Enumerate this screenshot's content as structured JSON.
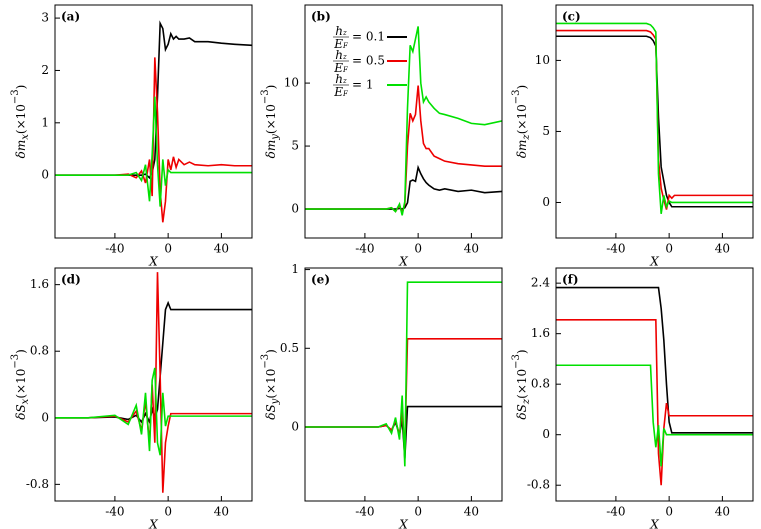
{
  "chart_data": [
    {
      "type": "line",
      "label": "(a)",
      "xlabel": "X",
      "ylabel": {
        "main": "δm",
        "sub": "x",
        "factor": "(×10",
        "exp": "−3",
        "end": ")"
      },
      "x": [
        -85,
        -60,
        -40,
        -30,
        -24,
        -20,
        -17,
        -14,
        -12,
        -10,
        -8,
        -6,
        -4,
        -2,
        0,
        2,
        4,
        6,
        8,
        12,
        16,
        20,
        30,
        40,
        50,
        63
      ],
      "xlim": [
        -85,
        63
      ],
      "xticks": [
        -40,
        0,
        40
      ],
      "ylim": [
        -1.2,
        3.25
      ],
      "yticks": [
        0,
        1,
        2,
        3
      ],
      "series": [
        {
          "name": "= 0.1",
          "color": "#000000",
          "values": [
            0,
            0,
            0,
            0,
            0,
            0,
            0.02,
            -0.05,
            0.05,
            0.3,
            1.5,
            2.9,
            2.8,
            2.4,
            2.5,
            2.7,
            2.6,
            2.65,
            2.6,
            2.6,
            2.62,
            2.55,
            2.55,
            2.52,
            2.5,
            2.48
          ]
        },
        {
          "name": "= 0.5",
          "color": "#ee0000",
          "values": [
            0,
            0,
            0,
            0.02,
            -0.05,
            0.08,
            -0.15,
            0.3,
            -0.4,
            2.25,
            1.2,
            -0.3,
            -0.9,
            -0.5,
            0.3,
            0.1,
            0.35,
            0.15,
            0.3,
            0.2,
            0.25,
            0.2,
            0.18,
            0.2,
            0.18,
            0.18
          ]
        },
        {
          "name": "= 1",
          "color": "#00e000",
          "values": [
            0,
            0,
            0,
            0,
            0.05,
            -0.1,
            0.2,
            -0.5,
            0.4,
            1.5,
            0.2,
            -0.6,
            0.3,
            -0.2,
            0.1,
            0.05,
            0.05,
            0.05,
            0.05,
            0.05,
            0.05,
            0.05,
            0.05,
            0.05,
            0.05,
            0.05
          ]
        }
      ]
    },
    {
      "type": "line",
      "label": "(b)",
      "xlabel": "X",
      "ylabel": {
        "main": "δm",
        "sub": "y",
        "factor": "(×10",
        "exp": "−3",
        "end": ")"
      },
      "legend": true,
      "legend_label": {
        "num": "h",
        "num_sub": "z",
        "den": "E",
        "den_sub": "F"
      },
      "x": [
        -85,
        -60,
        -40,
        -30,
        -24,
        -20,
        -17,
        -14,
        -12,
        -10,
        -8,
        -6,
        -4,
        -2,
        0,
        2,
        4,
        6,
        8,
        12,
        16,
        20,
        30,
        40,
        50,
        63
      ],
      "xlim": [
        -85,
        63
      ],
      "xticks": [
        -40,
        0,
        40
      ],
      "ylim": [
        -2.3,
        16.2
      ],
      "yticks": [
        0,
        5,
        10
      ],
      "series": [
        {
          "name": "= 0.1",
          "color": "#000000",
          "values": [
            0,
            0,
            0,
            0,
            0,
            0,
            0,
            0.05,
            0,
            0.1,
            0.5,
            2.2,
            2.3,
            2.2,
            3.3,
            2.8,
            2.4,
            2.1,
            1.9,
            1.6,
            1.5,
            1.6,
            1.4,
            1.5,
            1.3,
            1.4
          ]
        },
        {
          "name": "= 0.5",
          "color": "#ee0000",
          "values": [
            0,
            0,
            0,
            0,
            0,
            0.1,
            -0.2,
            0.3,
            -0.3,
            0.4,
            5,
            7.6,
            7.0,
            7.5,
            9.8,
            7,
            5.2,
            4.8,
            4.8,
            4.2,
            4.0,
            3.8,
            3.6,
            3.5,
            3.4,
            3.4
          ]
        },
        {
          "name": "= 1",
          "color": "#00e000",
          "values": [
            0,
            0,
            0,
            0,
            0,
            0.1,
            -0.2,
            0.4,
            -0.5,
            0.6,
            8,
            13,
            12.5,
            13.5,
            14.5,
            10,
            8.5,
            8.9,
            8.5,
            8.0,
            7.6,
            7.5,
            7.2,
            6.8,
            6.7,
            7.0
          ]
        }
      ]
    },
    {
      "type": "line",
      "label": "(c)",
      "xlabel": "X",
      "ylabel": {
        "main": "δm",
        "sub": "z",
        "factor": "(×10",
        "exp": "−3",
        "end": ")"
      },
      "x": [
        -85,
        -60,
        -40,
        -30,
        -24,
        -20,
        -17,
        -14,
        -12,
        -10,
        -8,
        -6,
        -4,
        -2,
        0,
        2,
        4,
        6,
        8,
        12,
        16,
        20,
        30,
        40,
        50,
        63
      ],
      "xlim": [
        -85,
        63
      ],
      "xticks": [
        -40,
        0,
        40
      ],
      "ylim": [
        -2.5,
        13.9
      ],
      "yticks": [
        0,
        5,
        10
      ],
      "series": [
        {
          "name": "= 0.1",
          "color": "#000000",
          "values": [
            11.7,
            11.7,
            11.7,
            11.7,
            11.7,
            11.7,
            11.7,
            11.6,
            11.4,
            11,
            6,
            2.5,
            1.5,
            0.5,
            0,
            -0.3,
            -0.3,
            -0.3,
            -0.3,
            -0.3,
            -0.3,
            -0.3,
            -0.3,
            -0.3,
            -0.3,
            -0.3
          ]
        },
        {
          "name": "= 0.5",
          "color": "#ee0000",
          "values": [
            12.1,
            12.1,
            12.1,
            12.1,
            12.1,
            12.1,
            12.1,
            12.0,
            11.8,
            11.5,
            3,
            1,
            0.2,
            -0.5,
            0.5,
            0.3,
            0.5,
            0.5,
            0.5,
            0.5,
            0.5,
            0.5,
            0.5,
            0.5,
            0.5,
            0.5
          ]
        },
        {
          "name": "= 1",
          "color": "#00e000",
          "values": [
            12.6,
            12.6,
            12.6,
            12.6,
            12.6,
            12.6,
            12.6,
            12.5,
            12.3,
            12,
            2,
            -0.8,
            0.5,
            -0.3,
            0.1,
            0,
            0,
            0,
            0,
            0,
            0,
            0,
            0,
            0,
            0,
            0
          ]
        }
      ]
    },
    {
      "type": "line",
      "label": "(d)",
      "xlabel": "X",
      "ylabel": {
        "main": "δS",
        "sub": "x",
        "factor": "(×10",
        "exp": "−3",
        "end": ")"
      },
      "x": [
        -85,
        -60,
        -40,
        -30,
        -24,
        -20,
        -17,
        -14,
        -12,
        -10,
        -8,
        -6,
        -4,
        -2,
        0,
        2,
        4,
        6,
        8,
        12,
        16,
        20,
        30,
        40,
        50,
        63
      ],
      "xlim": [
        -85,
        63
      ],
      "xticks": [
        -40,
        0,
        40
      ],
      "ylim": [
        -1.0,
        1.8
      ],
      "yticks": [
        -0.8,
        0,
        0.8,
        1.6
      ],
      "series": [
        {
          "name": "= 0.1",
          "color": "#000000",
          "values": [
            0,
            0,
            0.01,
            -0.02,
            0.03,
            -0.05,
            0.05,
            -0.05,
            0.1,
            0,
            0.1,
            0.5,
            0.9,
            1.3,
            1.38,
            1.3,
            1.3,
            1.3,
            1.3,
            1.3,
            1.3,
            1.3,
            1.3,
            1.3,
            1.3,
            1.3
          ]
        },
        {
          "name": "= 0.5",
          "color": "#ee0000",
          "values": [
            0,
            0,
            0.02,
            -0.05,
            0.08,
            -0.15,
            0.2,
            -0.3,
            0.4,
            -0.3,
            1.75,
            0.5,
            -0.9,
            -0.3,
            -0.1,
            0.05,
            0.05,
            0.05,
            0.05,
            0.05,
            0.05,
            0.05,
            0.05,
            0.05,
            0.05,
            0.05
          ]
        },
        {
          "name": "= 1",
          "color": "#00e000",
          "values": [
            0,
            0,
            0.03,
            -0.08,
            0.15,
            -0.2,
            0.3,
            -0.4,
            0.45,
            0.6,
            -0.3,
            -0.45,
            0.3,
            -0.1,
            0.02,
            0.02,
            0.02,
            0.02,
            0.02,
            0.02,
            0.02,
            0.02,
            0.02,
            0.02,
            0.02,
            0.02
          ]
        }
      ]
    },
    {
      "type": "line",
      "label": "(e)",
      "xlabel": "X",
      "ylabel": {
        "main": "δS",
        "sub": "y",
        "factor": "(×10",
        "exp": "−3",
        "end": ")"
      },
      "x": [
        -85,
        -60,
        -40,
        -30,
        -24,
        -20,
        -17,
        -14,
        -12,
        -10,
        -8,
        -6,
        -4,
        -2,
        0,
        2,
        4,
        6,
        8,
        12,
        16,
        20,
        30,
        40,
        50,
        63
      ],
      "xlim": [
        -85,
        63
      ],
      "xticks": [
        -40,
        0,
        40
      ],
      "ylim": [
        -0.47,
        1.01
      ],
      "yticks": [
        0,
        0.5,
        1
      ],
      "series": [
        {
          "name": "= 0.1",
          "color": "#000000",
          "values": [
            0,
            0,
            0,
            0,
            0.01,
            -0.02,
            0.03,
            -0.05,
            0.05,
            -0.2,
            0.13,
            0.13,
            0.13,
            0.13,
            0.13,
            0.13,
            0.13,
            0.13,
            0.13,
            0.13,
            0.13,
            0.13,
            0.13,
            0.13,
            0.13,
            0.13
          ]
        },
        {
          "name": "= 0.5",
          "color": "#ee0000",
          "values": [
            0,
            0,
            0,
            0,
            0.01,
            -0.02,
            0.04,
            -0.05,
            0.1,
            -0.15,
            0.56,
            0.56,
            0.56,
            0.56,
            0.56,
            0.56,
            0.56,
            0.56,
            0.56,
            0.56,
            0.56,
            0.56,
            0.56,
            0.56,
            0.56,
            0.56
          ]
        },
        {
          "name": "= 1",
          "color": "#00e000",
          "values": [
            0,
            0,
            0,
            0,
            0.02,
            -0.04,
            0.06,
            -0.08,
            0.2,
            -0.25,
            0.92,
            0.92,
            0.92,
            0.92,
            0.92,
            0.92,
            0.92,
            0.92,
            0.92,
            0.92,
            0.92,
            0.92,
            0.92,
            0.92,
            0.92,
            0.92
          ]
        }
      ]
    },
    {
      "type": "line",
      "label": "(f)",
      "xlabel": "X",
      "ylabel": {
        "main": "δS",
        "sub": "z",
        "factor": "(×10",
        "exp": "−3",
        "end": ")"
      },
      "x": [
        -85,
        -60,
        -40,
        -30,
        -24,
        -20,
        -17,
        -14,
        -12,
        -10,
        -8,
        -6,
        -4,
        -2,
        0,
        2,
        4,
        6,
        8,
        12,
        16,
        20,
        30,
        40,
        50,
        63
      ],
      "xlim": [
        -85,
        63
      ],
      "xticks": [
        -40,
        0,
        40
      ],
      "ylim": [
        -1.05,
        2.64
      ],
      "yticks": [
        -0.8,
        0,
        0.8,
        1.6,
        2.4
      ],
      "series": [
        {
          "name": "= 0.1",
          "color": "#000000",
          "values": [
            2.33,
            2.33,
            2.33,
            2.33,
            2.33,
            2.33,
            2.33,
            2.33,
            2.33,
            2.33,
            2.33,
            2.0,
            1.5,
            0.8,
            0.2,
            0.03,
            0.03,
            0.03,
            0.03,
            0.03,
            0.03,
            0.03,
            0.03,
            0.03,
            0.03,
            0.03
          ]
        },
        {
          "name": "= 0.5",
          "color": "#ee0000",
          "values": [
            1.82,
            1.82,
            1.82,
            1.82,
            1.82,
            1.82,
            1.82,
            1.82,
            1.82,
            1.82,
            -0.3,
            -0.8,
            0.1,
            0.5,
            0.3,
            0.3,
            0.3,
            0.3,
            0.3,
            0.3,
            0.3,
            0.3,
            0.3,
            0.3,
            0.3,
            0.3
          ]
        },
        {
          "name": "= 1",
          "color": "#00e000",
          "values": [
            1.1,
            1.1,
            1.1,
            1.1,
            1.1,
            1.1,
            1.1,
            1.1,
            0.2,
            -0.2,
            0.15,
            -0.5,
            0.1,
            0,
            0,
            0,
            0,
            0,
            0,
            0,
            0,
            0,
            0,
            0,
            0,
            0
          ]
        }
      ]
    }
  ]
}
